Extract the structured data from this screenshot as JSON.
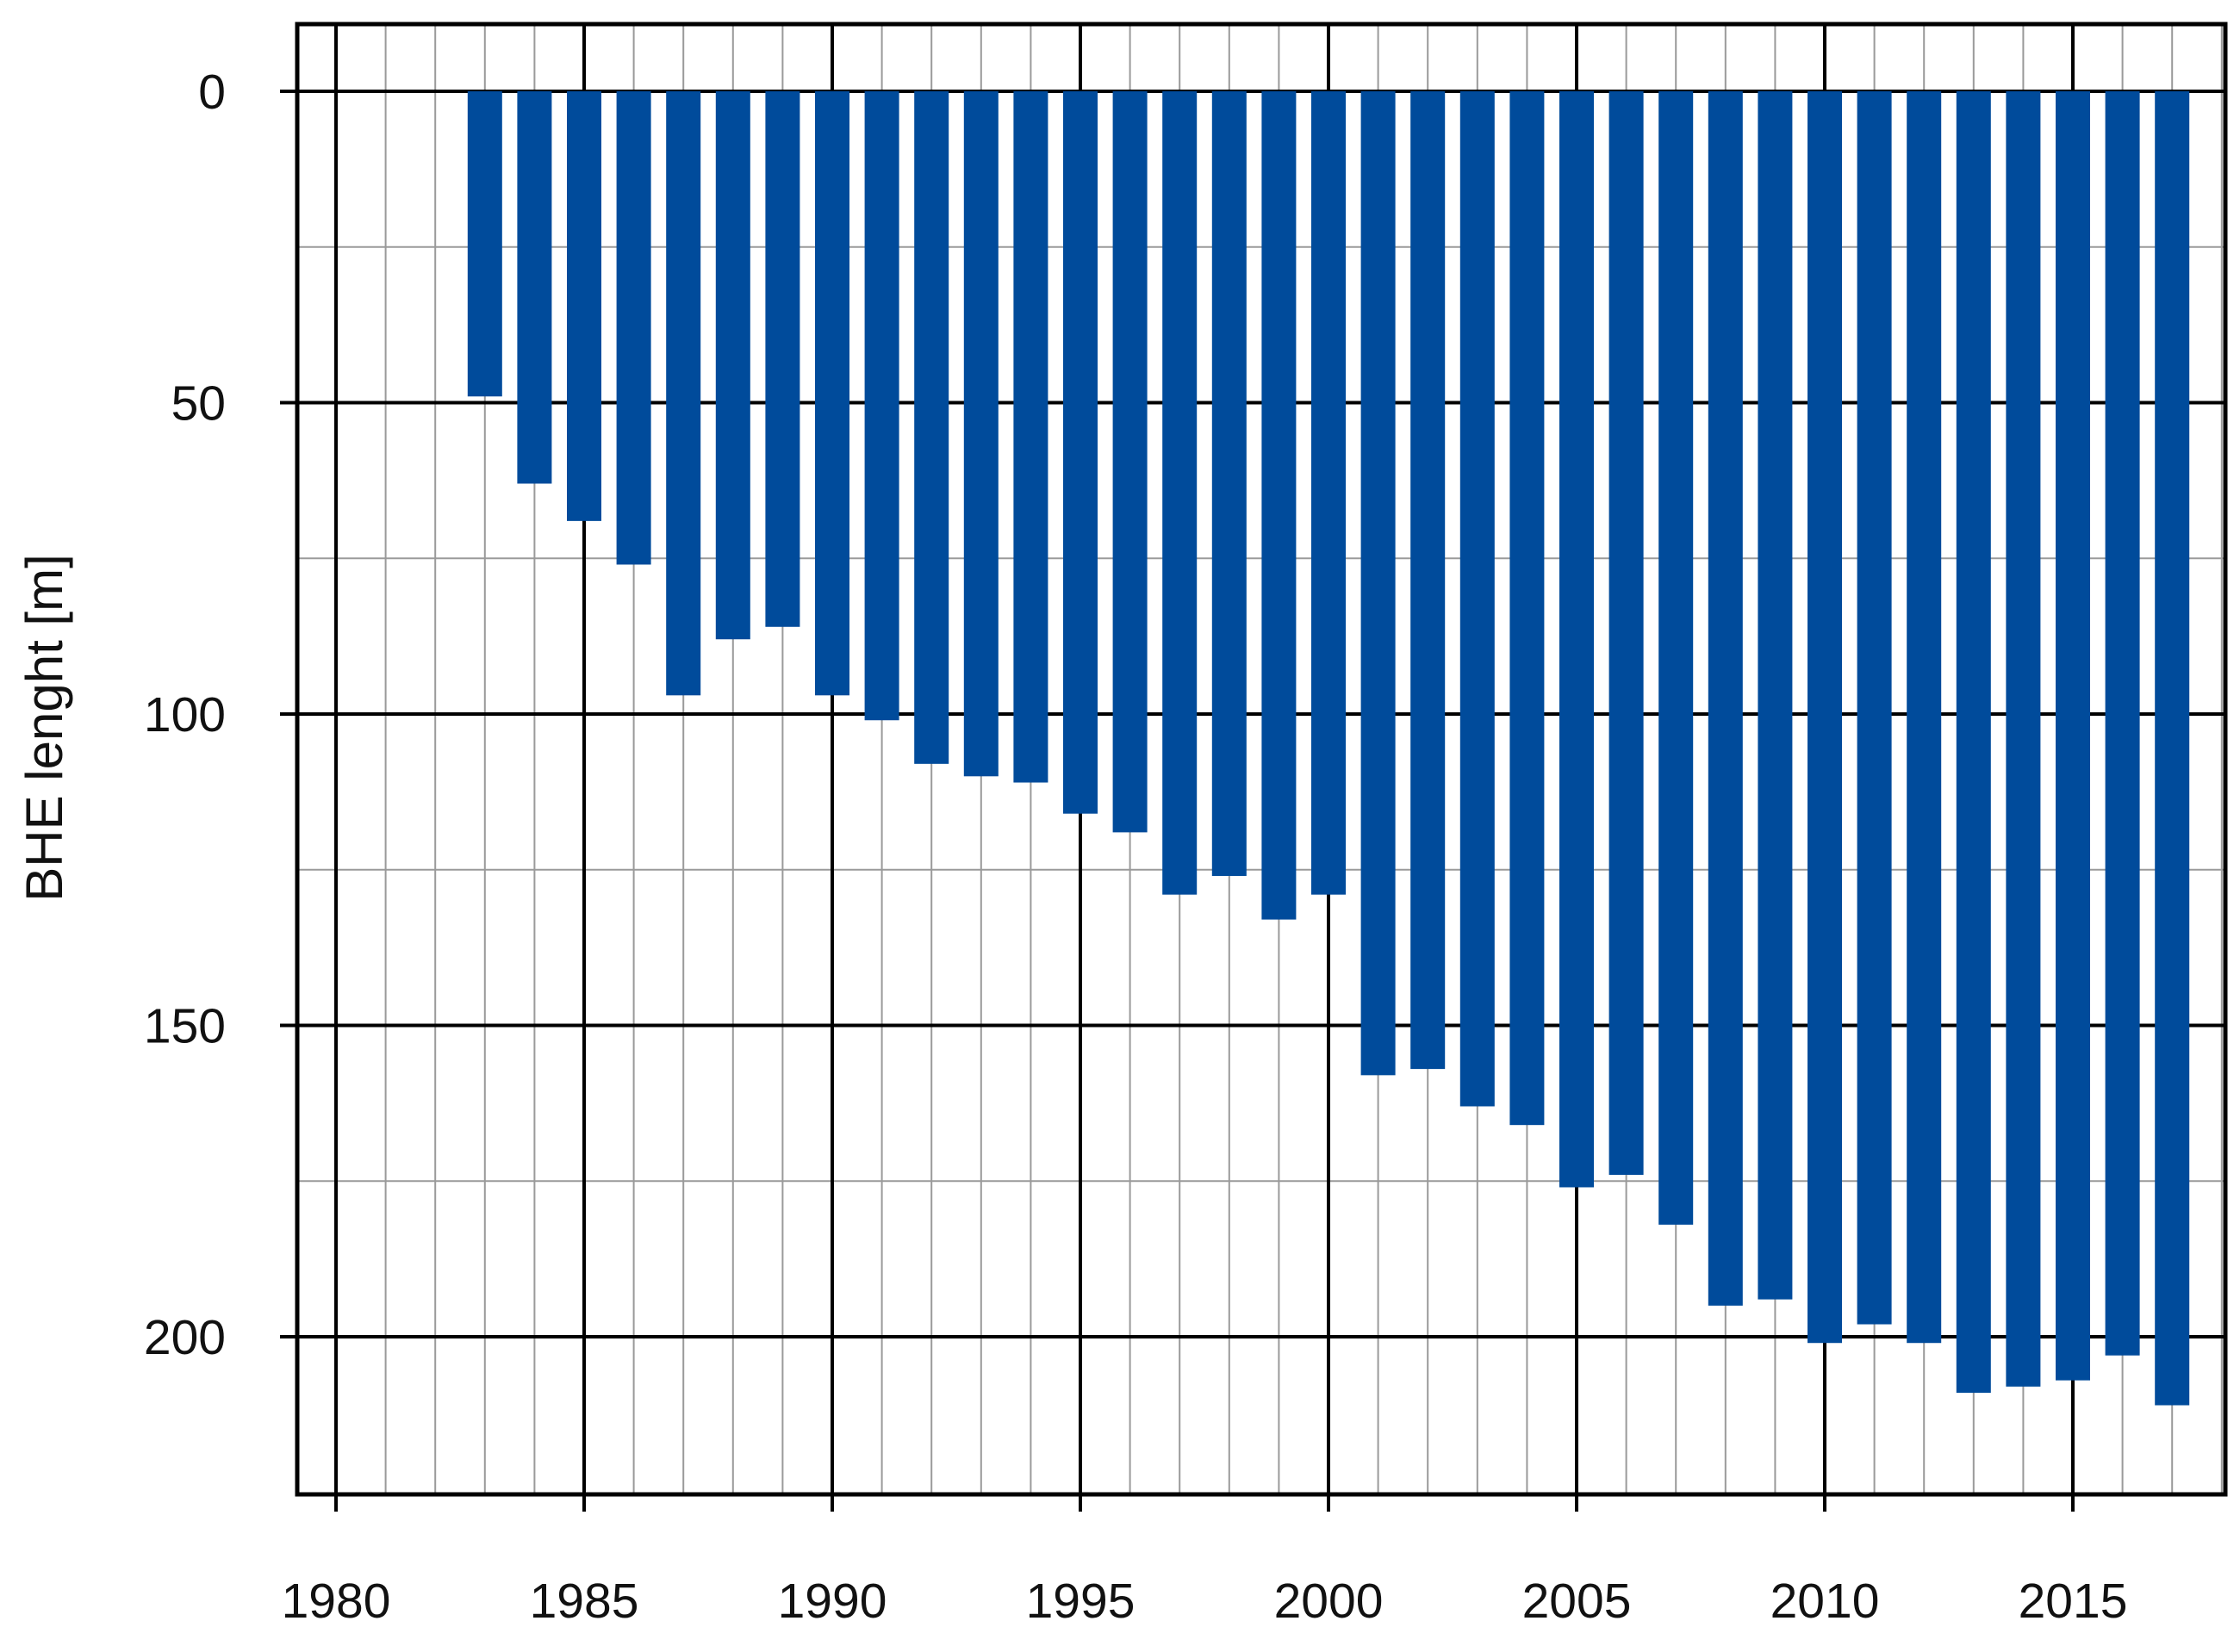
{
  "chart_data": {
    "type": "bar",
    "orientation": "vertical-inverted",
    "title": "",
    "xlabel": "",
    "ylabel": "BHE lenght [m]",
    "xlim": [
      1979.2,
      2018.2
    ],
    "ylim": [
      0,
      225
    ],
    "y_inverted": true,
    "x_ticks": [
      1980,
      1985,
      1990,
      1995,
      2000,
      2005,
      2010,
      2015
    ],
    "x_tick_labels": [
      "1980",
      "1985",
      "1990",
      "1995",
      "2000",
      "2005",
      "2010",
      "2015"
    ],
    "y_ticks": [
      0,
      50,
      100,
      150,
      200
    ],
    "y_tick_labels": [
      "0",
      "50",
      "100",
      "150",
      "200"
    ],
    "grid": true,
    "grid_minor_x": "every year",
    "grid_minor_y": 25,
    "legend": "none",
    "bar_color": "#004b9b",
    "series": [
      {
        "x": [
          1983,
          1984,
          1985,
          1986,
          1987,
          1988,
          1989,
          1990,
          1991,
          1992,
          1993,
          1994,
          1995,
          1996,
          1997,
          1998,
          1999,
          2000,
          2001,
          2002,
          2003,
          2004,
          2005,
          2006,
          2007,
          2008,
          2009,
          2010,
          2011,
          2012,
          2013,
          2014,
          2015,
          2016,
          2017
        ],
        "values": [
          49,
          63,
          69,
          76,
          97,
          88,
          86,
          97,
          101,
          108,
          110,
          111,
          116,
          119,
          129,
          126,
          133,
          129,
          158,
          157,
          163,
          166,
          176,
          174,
          182,
          195,
          194,
          201,
          198,
          201,
          209,
          208,
          207,
          203,
          211
        ]
      }
    ]
  }
}
